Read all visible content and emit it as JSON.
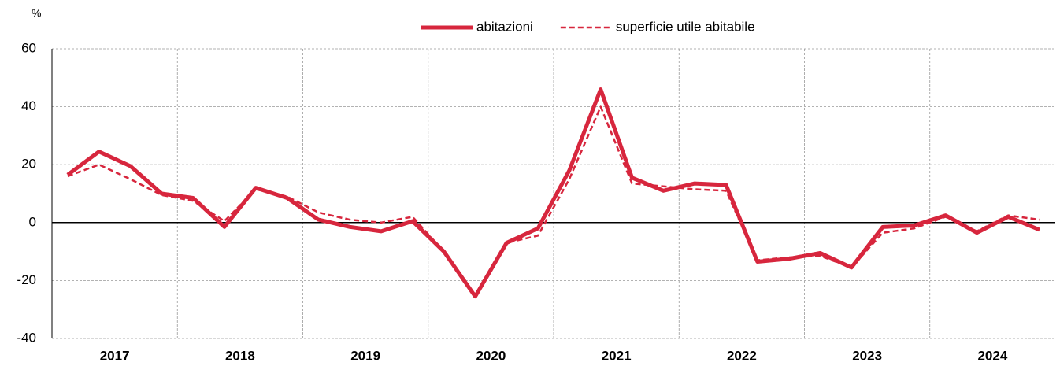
{
  "chart_data": {
    "type": "line",
    "y_axis_label": "%",
    "groups": [
      "2017",
      "2018",
      "2019",
      "2020",
      "2021",
      "2022",
      "2023",
      "2024"
    ],
    "series": [
      {
        "name": "abitazioni",
        "color": "#d7263d",
        "style": "solid",
        "values": [
          16.5,
          24.5,
          19.5,
          10,
          8.5,
          -1.5,
          12,
          8.5,
          1,
          -1.5,
          -3,
          0.5,
          -10,
          -25.5,
          -7,
          -2,
          18,
          46,
          15.5,
          11,
          13.5,
          13,
          -13.5,
          -12.5,
          -10.5,
          -15.5,
          -1.5,
          -1,
          2.5,
          -3.5,
          2,
          -2.5
        ]
      },
      {
        "name": "superficie utile abitabile",
        "color": "#d7263d",
        "style": "dashed",
        "values": [
          16,
          20,
          15,
          9.5,
          7.5,
          0.5,
          11.5,
          9,
          3.5,
          1,
          0,
          2,
          -10,
          -25.5,
          -7,
          -4.5,
          15,
          40,
          13.5,
          12.5,
          11.5,
          11,
          -13,
          -12,
          -11.5,
          -15.5,
          -3.5,
          -2,
          2,
          -3,
          2.5,
          1
        ]
      }
    ],
    "ylim": [
      -40,
      60
    ],
    "yticks": [
      -40,
      -20,
      0,
      20,
      40,
      60
    ],
    "grid": true,
    "legend": "top"
  }
}
